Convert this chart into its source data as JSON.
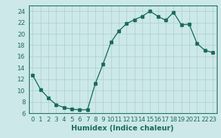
{
  "x": [
    0,
    1,
    2,
    3,
    4,
    5,
    6,
    7,
    8,
    9,
    10,
    11,
    12,
    13,
    14,
    15,
    16,
    17,
    18,
    19,
    20,
    21,
    22,
    23
  ],
  "y": [
    12.7,
    10.2,
    8.7,
    7.5,
    7.0,
    6.7,
    6.6,
    6.6,
    11.2,
    14.7,
    18.5,
    20.5,
    21.8,
    22.5,
    23.1,
    24.0,
    23.1,
    22.4,
    23.8,
    21.6,
    21.7,
    18.3,
    17.1,
    16.7
  ],
  "line_color": "#1a6b5a",
  "marker": "s",
  "marker_size": 2.5,
  "bg_color": "#cce8e8",
  "grid_color": "#aacccc",
  "xlabel": "Humidex (Indice chaleur)",
  "xlabel_fontsize": 7.5,
  "tick_fontsize": 6.5,
  "xlim": [
    -0.5,
    23.5
  ],
  "ylim": [
    6,
    25
  ],
  "yticks": [
    6,
    8,
    10,
    12,
    14,
    16,
    18,
    20,
    22,
    24
  ],
  "xticks": [
    0,
    1,
    2,
    3,
    4,
    5,
    6,
    7,
    8,
    9,
    10,
    11,
    12,
    13,
    14,
    15,
    16,
    17,
    18,
    19,
    20,
    21,
    22,
    23
  ]
}
